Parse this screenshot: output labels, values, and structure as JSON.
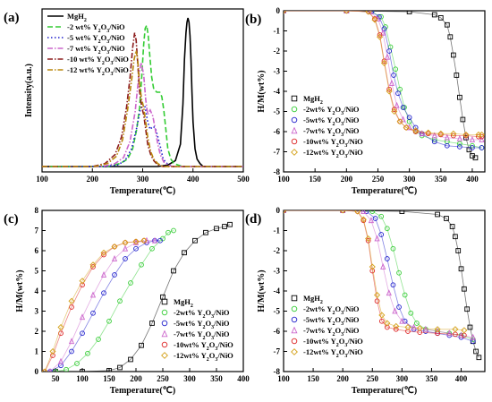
{
  "chart_data": [
    {
      "panel": "(a)",
      "type": "line",
      "xlabel": "Temperature(℃)",
      "ylabel": "Intensity(a.u.)",
      "xlim": [
        100,
        500
      ],
      "xticks": [
        100,
        200,
        300,
        400,
        500
      ],
      "yticks": [],
      "legend_position": "top-left",
      "series": [
        {
          "name": "MgH₂",
          "color": "#000000",
          "style": "solid",
          "marker": "none",
          "x": [
            100,
            330,
            350,
            365,
            375,
            380,
            383,
            386,
            388,
            390,
            392,
            394,
            396,
            398,
            400,
            404,
            408,
            414,
            420,
            440,
            500
          ],
          "y": [
            0,
            0,
            0.01,
            0.04,
            0.15,
            0.42,
            0.72,
            0.9,
            0.97,
            1.0,
            0.97,
            0.88,
            0.72,
            0.5,
            0.3,
            0.12,
            0.05,
            0.02,
            0,
            0,
            0
          ]
        },
        {
          "name": "-2 wt% Y₂O₃/NiO",
          "color": "#33cc33",
          "style": "dashed",
          "marker": "none",
          "x": [
            100,
            230,
            255,
            270,
            280,
            288,
            294,
            298,
            302,
            305,
            308,
            311,
            314,
            318,
            322,
            328,
            334,
            338,
            342,
            346,
            350,
            356,
            362,
            370,
            380,
            400,
            500
          ],
          "y": [
            0,
            0,
            0.02,
            0.05,
            0.12,
            0.25,
            0.4,
            0.6,
            0.82,
            0.93,
            0.95,
            0.88,
            0.75,
            0.6,
            0.52,
            0.5,
            0.5,
            0.47,
            0.38,
            0.25,
            0.12,
            0.05,
            0.02,
            0.01,
            0,
            0,
            0
          ]
        },
        {
          "name": "-5 wt% Y₂O₃/NiO",
          "color": "#1f1fcc",
          "style": "dotted",
          "marker": "none",
          "x": [
            100,
            225,
            250,
            265,
            278,
            288,
            295,
            300,
            305,
            310,
            315,
            320,
            325,
            330,
            336,
            340,
            345,
            352,
            360,
            370,
            380,
            500
          ],
          "y": [
            0,
            0,
            0.01,
            0.04,
            0.12,
            0.26,
            0.38,
            0.42,
            0.4,
            0.3,
            0.25,
            0.27,
            0.26,
            0.2,
            0.12,
            0.06,
            0.03,
            0.01,
            0,
            0,
            0,
            0
          ]
        },
        {
          "name": "-7 wt% Y₂O₃/NiO",
          "color": "#cc66cc",
          "style": "dashdot",
          "marker": "none",
          "x": [
            100,
            220,
            245,
            262,
            275,
            285,
            292,
            297,
            302,
            306,
            310,
            315,
            320,
            325,
            330,
            335,
            342,
            350,
            360,
            500
          ],
          "y": [
            0,
            0,
            0.02,
            0.06,
            0.17,
            0.37,
            0.6,
            0.7,
            0.62,
            0.45,
            0.35,
            0.38,
            0.34,
            0.25,
            0.15,
            0.08,
            0.03,
            0.01,
            0,
            0
          ]
        },
        {
          "name": "-10 wt% Y₂O₃/NiO",
          "color": "#8b1a1a",
          "style": "dashdot",
          "marker": "none",
          "x": [
            100,
            200,
            225,
            245,
            258,
            268,
            275,
            280,
            284,
            287,
            290,
            294,
            298,
            302,
            306,
            310,
            316,
            322,
            330,
            340,
            350,
            500
          ],
          "y": [
            0,
            0,
            0.02,
            0.08,
            0.2,
            0.4,
            0.6,
            0.8,
            0.9,
            0.85,
            0.7,
            0.5,
            0.4,
            0.35,
            0.25,
            0.15,
            0.08,
            0.04,
            0.01,
            0,
            0,
            0
          ]
        },
        {
          "name": "-12 wt% Y₂O₃/NiO",
          "color": "#b8860b",
          "style": "dashdot",
          "marker": "none",
          "x": [
            100,
            205,
            230,
            248,
            260,
            270,
            278,
            283,
            287,
            290,
            294,
            298,
            302,
            306,
            310,
            316,
            322,
            330,
            340,
            350,
            500
          ],
          "y": [
            0,
            0,
            0.02,
            0.07,
            0.18,
            0.38,
            0.58,
            0.72,
            0.78,
            0.72,
            0.55,
            0.45,
            0.4,
            0.3,
            0.2,
            0.1,
            0.05,
            0.02,
            0,
            0,
            0
          ]
        }
      ]
    },
    {
      "panel": "(b)",
      "type": "scatter",
      "xlabel": "Temperature(℃)",
      "ylabel": "H/M(wt%)",
      "xlim": [
        100,
        420
      ],
      "ylim": [
        -8,
        0
      ],
      "xticks": [
        100,
        150,
        200,
        250,
        300,
        350,
        400
      ],
      "yticks": [
        0,
        -1,
        -2,
        -3,
        -4,
        -5,
        -6,
        -7,
        -8
      ],
      "legend_position": "bottom-left",
      "series": [
        {
          "name": "MgH₂",
          "color": "#000000",
          "marker": "square",
          "x": [
            100,
            200,
            300,
            340,
            350,
            360,
            365,
            370,
            375,
            380,
            385,
            390,
            395,
            400,
            405
          ],
          "y": [
            0,
            0,
            -0.05,
            -0.2,
            -0.35,
            -0.7,
            -1.3,
            -2.2,
            -3.2,
            -4.3,
            -5.4,
            -6.3,
            -6.9,
            -7.2,
            -7.3
          ]
        },
        {
          "name": "-2wt% Y₂O₃/NiO",
          "color": "#33cc33",
          "marker": "circle",
          "x": [
            100,
            200,
            240,
            255,
            262,
            270,
            278,
            285,
            292,
            300,
            310,
            320,
            340,
            360,
            380,
            400,
            415
          ],
          "y": [
            0,
            0,
            -0.05,
            -0.3,
            -0.8,
            -1.8,
            -2.9,
            -3.9,
            -4.8,
            -5.5,
            -6.0,
            -6.2,
            -6.4,
            -6.5,
            -6.6,
            -6.7,
            -6.8
          ]
        },
        {
          "name": "-5wt% Y₂O₃/NiO",
          "color": "#1f1fcc",
          "marker": "circle",
          "x": [
            100,
            200,
            240,
            252,
            260,
            268,
            275,
            282,
            290,
            300,
            310,
            320,
            340,
            360,
            380,
            400,
            415
          ],
          "y": [
            0,
            0,
            -0.05,
            -0.3,
            -0.9,
            -2.0,
            -3.2,
            -4.1,
            -4.8,
            -5.3,
            -5.8,
            -6.1,
            -6.5,
            -6.7,
            -6.75,
            -6.8,
            -6.8
          ]
        },
        {
          "name": "-7wt% Y₂O₃/NiO",
          "color": "#cc66cc",
          "marker": "triangle",
          "x": [
            100,
            200,
            238,
            250,
            258,
            265,
            272,
            280,
            290,
            300,
            320,
            340,
            360,
            380,
            400,
            415
          ],
          "y": [
            0,
            0,
            -0.05,
            -0.4,
            -1.1,
            -2.3,
            -3.6,
            -4.7,
            -5.4,
            -5.8,
            -6.1,
            -6.2,
            -6.3,
            -6.35,
            -6.4,
            -6.4
          ]
        },
        {
          "name": "-10wt% Y₂O₃/NiO",
          "color": "#dd2222",
          "marker": "circle",
          "x": [
            100,
            200,
            235,
            245,
            253,
            260,
            268,
            276,
            285,
            295,
            310,
            330,
            350,
            370,
            390,
            410,
            415
          ],
          "y": [
            0,
            0,
            -0.05,
            -0.4,
            -1.2,
            -2.5,
            -3.9,
            -4.9,
            -5.5,
            -5.8,
            -6.0,
            -6.1,
            -6.15,
            -6.2,
            -6.2,
            -6.25,
            -6.25
          ]
        },
        {
          "name": "-12wt% Y₂O₃/NiO",
          "color": "#d4a017",
          "marker": "diamond",
          "x": [
            100,
            200,
            235,
            245,
            253,
            260,
            268,
            276,
            285,
            295,
            310,
            330,
            350,
            370,
            390,
            410,
            415
          ],
          "y": [
            0,
            0,
            -0.05,
            -0.45,
            -1.3,
            -2.6,
            -4.0,
            -5.0,
            -5.5,
            -5.8,
            -5.95,
            -6.05,
            -6.1,
            -6.1,
            -6.15,
            -6.15,
            -6.15
          ]
        }
      ]
    },
    {
      "panel": "(c)",
      "type": "scatter",
      "xlabel": "Temperature(℃)",
      "ylabel": "H/M(wt%)",
      "xlim": [
        25,
        400
      ],
      "ylim": [
        0,
        8
      ],
      "xticks": [
        50,
        100,
        150,
        200,
        250,
        300,
        350,
        400
      ],
      "yticks": [
        0,
        1,
        2,
        3,
        4,
        5,
        6,
        7,
        8
      ],
      "legend_position": "bottom-right",
      "series": [
        {
          "name": "MgH₂",
          "color": "#000000",
          "marker": "square",
          "x": [
            50,
            100,
            150,
            170,
            190,
            210,
            230,
            250,
            270,
            290,
            310,
            330,
            350,
            365,
            375
          ],
          "y": [
            0,
            0,
            0.05,
            0.2,
            0.6,
            1.3,
            2.4,
            3.7,
            5.0,
            5.9,
            6.5,
            6.9,
            7.1,
            7.2,
            7.3
          ]
        },
        {
          "name": "-2wt% Y₂O₃/NiO",
          "color": "#33cc33",
          "marker": "circle",
          "x": [
            50,
            70,
            90,
            110,
            130,
            150,
            170,
            190,
            210,
            230,
            250,
            260,
            270
          ],
          "y": [
            0,
            0.1,
            0.4,
            0.9,
            1.6,
            2.5,
            3.5,
            4.4,
            5.3,
            6.1,
            6.6,
            6.9,
            7.0
          ]
        },
        {
          "name": "-5wt% Y₂O₃/NiO",
          "color": "#1f1fcc",
          "marker": "circle",
          "x": [
            40,
            60,
            80,
            100,
            120,
            140,
            160,
            180,
            200,
            220,
            235,
            245
          ],
          "y": [
            0,
            0.3,
            1.0,
            1.9,
            2.9,
            3.9,
            4.8,
            5.6,
            6.1,
            6.4,
            6.5,
            6.5
          ]
        },
        {
          "name": "-7wt% Y₂O₃/NiO",
          "color": "#cc66cc",
          "marker": "triangle",
          "x": [
            40,
            60,
            80,
            100,
            120,
            140,
            160,
            180,
            200,
            220,
            235
          ],
          "y": [
            0,
            0.5,
            1.5,
            2.7,
            3.8,
            4.8,
            5.6,
            6.1,
            6.4,
            6.5,
            6.5
          ]
        },
        {
          "name": "-10wt% Y₂O₃/NiO",
          "color": "#dd2222",
          "marker": "circle",
          "x": [
            30,
            45,
            60,
            80,
            100,
            120,
            140,
            160,
            180,
            200,
            215
          ],
          "y": [
            0,
            0.8,
            1.9,
            3.2,
            4.3,
            5.2,
            5.8,
            6.2,
            6.4,
            6.45,
            6.5
          ]
        },
        {
          "name": "-12wt% Y₂O₃/NiO",
          "color": "#d4a017",
          "marker": "diamond",
          "x": [
            30,
            45,
            60,
            80,
            100,
            120,
            140,
            160,
            180,
            200,
            215
          ],
          "y": [
            0,
            1.0,
            2.2,
            3.5,
            4.5,
            5.3,
            5.9,
            6.2,
            6.4,
            6.45,
            6.5
          ]
        }
      ]
    },
    {
      "panel": "(d)",
      "type": "scatter",
      "xlabel": "Temperature(℃)",
      "ylabel": "H/M(wt%)",
      "xlim": [
        100,
        440
      ],
      "ylim": [
        -8,
        0
      ],
      "xticks": [
        100,
        150,
        200,
        250,
        300,
        350,
        400
      ],
      "yticks": [
        0,
        -1,
        -2,
        -3,
        -4,
        -5,
        -6,
        -7,
        -8
      ],
      "legend_position": "bottom-left",
      "series": [
        {
          "name": "MgH₂",
          "color": "#000000",
          "marker": "square",
          "x": [
            100,
            200,
            300,
            360,
            375,
            385,
            390,
            395,
            400,
            405,
            410,
            415,
            420,
            425,
            430
          ],
          "y": [
            0,
            0,
            -0.05,
            -0.2,
            -0.4,
            -0.8,
            -1.3,
            -2.0,
            -2.9,
            -3.9,
            -4.9,
            -5.8,
            -6.5,
            -7.0,
            -7.3
          ]
        },
        {
          "name": "-2wt% Y₂O₃/NiO",
          "color": "#33cc33",
          "marker": "circle",
          "x": [
            100,
            200,
            250,
            265,
            275,
            285,
            295,
            305,
            315,
            325,
            340,
            360,
            380,
            400,
            420
          ],
          "y": [
            0,
            0,
            -0.05,
            -0.3,
            -0.9,
            -1.9,
            -3.1,
            -4.2,
            -5.1,
            -5.6,
            -5.9,
            -6.0,
            -6.1,
            -6.2,
            -6.4
          ]
        },
        {
          "name": "-5wt% Y₂O₃/NiO",
          "color": "#1f1fcc",
          "marker": "circle",
          "x": [
            100,
            200,
            240,
            255,
            265,
            275,
            285,
            295,
            305,
            320,
            340,
            360,
            380,
            400,
            420
          ],
          "y": [
            0,
            0,
            -0.05,
            -0.4,
            -1.2,
            -2.4,
            -3.7,
            -4.8,
            -5.5,
            -5.9,
            -6.0,
            -6.1,
            -6.2,
            -6.3,
            -6.5
          ]
        },
        {
          "name": "-7wt% Y₂O₃/NiO",
          "color": "#cc66cc",
          "marker": "triangle",
          "x": [
            100,
            200,
            235,
            248,
            258,
            268,
            278,
            288,
            300,
            320,
            340,
            360,
            380,
            400,
            420
          ],
          "y": [
            0,
            0,
            -0.05,
            -0.5,
            -1.4,
            -2.8,
            -4.1,
            -5.0,
            -5.5,
            -5.8,
            -5.9,
            -6.0,
            -6.1,
            -6.2,
            -6.3
          ]
        },
        {
          "name": "-10wt% Y₂O₃/NiO",
          "color": "#dd2222",
          "marker": "circle",
          "x": [
            100,
            200,
            225,
            235,
            243,
            250,
            258,
            266,
            275,
            290,
            310,
            330,
            360,
            390,
            405
          ],
          "y": [
            0,
            0,
            -0.05,
            -0.5,
            -1.5,
            -3.0,
            -4.5,
            -5.5,
            -5.8,
            -5.9,
            -6.0,
            -6.05,
            -6.1,
            -6.15,
            -6.2
          ]
        },
        {
          "name": "-12wt% Y₂O₃/NiO",
          "color": "#d4a017",
          "marker": "diamond",
          "x": [
            100,
            200,
            225,
            235,
            243,
            250,
            258,
            266,
            275,
            290,
            310,
            330,
            360,
            390,
            405
          ],
          "y": [
            0,
            0,
            -0.05,
            -0.45,
            -1.4,
            -2.8,
            -4.2,
            -5.2,
            -5.6,
            -5.75,
            -5.8,
            -5.85,
            -5.9,
            -5.9,
            -5.95
          ]
        }
      ]
    }
  ]
}
